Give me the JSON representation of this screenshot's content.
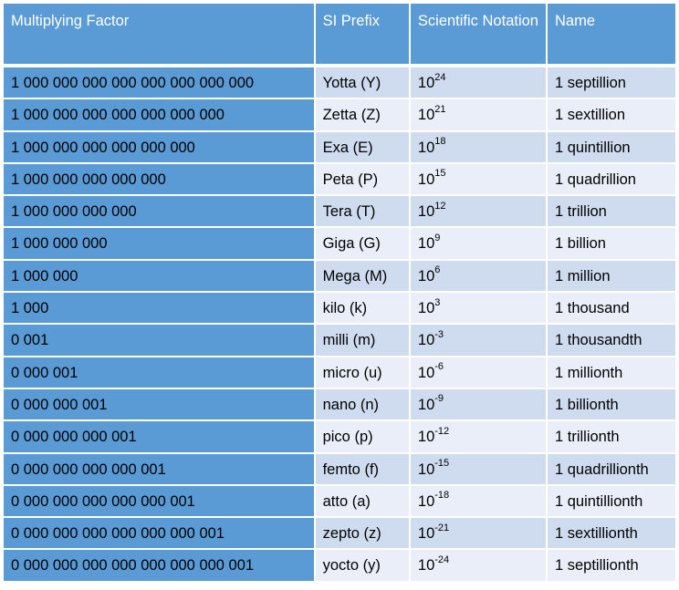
{
  "header": {
    "multiplying_factor": "Multiplying Factor",
    "si_prefix": "SI Prefix",
    "scientific_notation": "Scientific Notation",
    "name": "Name"
  },
  "rows": [
    {
      "factor": "1 000 000 000 000 000 000 000 000",
      "prefix": "Yotta (Y)",
      "base": "10",
      "exp": "24",
      "name": "1 septillion"
    },
    {
      "factor": "1 000 000 000 000 000 000 000",
      "prefix": "Zetta (Z)",
      "base": "10",
      "exp": "21",
      "name": "1 sextillion"
    },
    {
      "factor": "1 000 000 000 000 000 000",
      "prefix": "Exa (E)",
      "base": "10",
      "exp": "18",
      "name": "1 quintillion"
    },
    {
      "factor": "1 000 000 000 000 000",
      "prefix": "Peta (P)",
      "base": "10",
      "exp": "15",
      "name": "1 quadrillion"
    },
    {
      "factor": "1 000 000 000 000",
      "prefix": "Tera (T)",
      "base": "10",
      "exp": "12",
      "name": "1 trillion"
    },
    {
      "factor": "1 000 000 000",
      "prefix": "Giga (G)",
      "base": "10",
      "exp": "9",
      "name": "1 billion"
    },
    {
      "factor": "1 000 000",
      "prefix": "Mega (M)",
      "base": "10",
      "exp": "6",
      "name": "1 million"
    },
    {
      "factor": "1 000",
      "prefix": "kilo (k)",
      "base": "10",
      "exp": "3",
      "name": "1 thousand"
    },
    {
      "factor": "0 001",
      "prefix": "milli (m)",
      "base": "10",
      "exp": "-3",
      "name": "1 thousandth"
    },
    {
      "factor": "0 000 001",
      "prefix": "micro (u)",
      "base": "10",
      "exp": "-6",
      "name": "1 millionth"
    },
    {
      "factor": "0 000 000 001",
      "prefix": "nano (n)",
      "base": "10",
      "exp": "-9",
      "name": "1 billionth"
    },
    {
      "factor": "0 000 000 000 001",
      "prefix": "pico (p)",
      "base": "10",
      "exp": "-12",
      "name": "1 trillionth"
    },
    {
      "factor": "0 000 000 000 000 001",
      "prefix": "femto (f)",
      "base": "10",
      "exp": "-15",
      "name": "1 quadrillionth"
    },
    {
      "factor": "0 000 000 000 000 000 001",
      "prefix": "atto (a)",
      "base": "10",
      "exp": "-18",
      "name": "1 quintillionth"
    },
    {
      "factor": "0 000 000 000 000 000 000 001",
      "prefix": "zepto (z)",
      "base": "10",
      "exp": "-21",
      "name": "1 sextillionth"
    },
    {
      "factor": "0 000 000 000 000 000 000 000 001",
      "prefix": "yocto (y)",
      "base": "10",
      "exp": "-24",
      "name": "1 septillionth"
    }
  ],
  "colors": {
    "header_bg": "#5b9bd5",
    "factor_col_bg": "#5b9bd5",
    "band_dark": "#cfdcef",
    "band_light": "#e9eef8"
  }
}
